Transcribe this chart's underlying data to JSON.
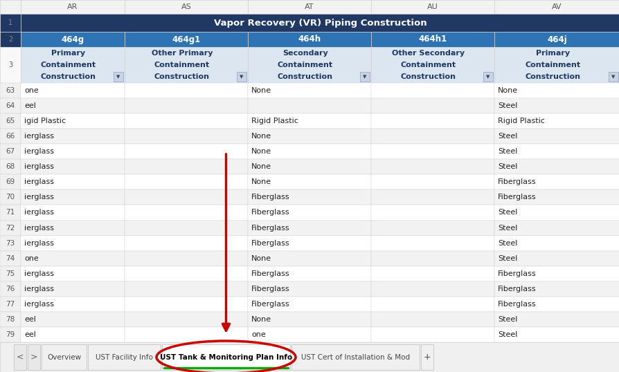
{
  "title": "Vapor Recovery (VR) Piping Construction",
  "col_headers_row1": [
    "AR",
    "AS",
    "AT",
    "AU",
    "AV"
  ],
  "col_headers_row2": [
    "464g",
    "464g1",
    "464h",
    "464h1",
    "464j"
  ],
  "col_headers_row3": [
    "Primary\nContainment\nConstruction",
    "Other Primary\nContainment\nConstruction",
    "Secondary\nContainment\nConstruction",
    "Other Secondary\nContainment\nConstruction",
    "Primary\nContainment\nConstruction"
  ],
  "rows": [
    [
      63,
      "one",
      "",
      "None",
      "",
      "None"
    ],
    [
      64,
      "eel",
      "",
      "",
      "",
      "Steel"
    ],
    [
      65,
      "igid Plastic",
      "",
      "Rigid Plastic",
      "",
      "Rigid Plastic"
    ],
    [
      66,
      "ierglass",
      "",
      "None",
      "",
      "Steel"
    ],
    [
      67,
      "ierglass",
      "",
      "None",
      "",
      "Steel"
    ],
    [
      68,
      "ierglass",
      "",
      "None",
      "",
      "Steel"
    ],
    [
      69,
      "ierglass",
      "",
      "None",
      "",
      "Fiberglass"
    ],
    [
      70,
      "ierglass",
      "",
      "Fiberglass",
      "",
      "Fiberglass"
    ],
    [
      71,
      "ierglass",
      "",
      "Fiberglass",
      "",
      "Steel"
    ],
    [
      72,
      "ierglass",
      "",
      "Fiberglass",
      "",
      "Steel"
    ],
    [
      73,
      "ierglass",
      "",
      "Fiberglass",
      "",
      "Steel"
    ],
    [
      74,
      "one",
      "",
      "None",
      "",
      "Steel"
    ],
    [
      75,
      "ierglass",
      "",
      "Fiberglass",
      "",
      "Fiberglass"
    ],
    [
      76,
      "ierglass",
      "",
      "Fiberglass",
      "",
      "Fiberglass"
    ],
    [
      77,
      "ierglass",
      "",
      "Fiberglass",
      "",
      "Fiberglass"
    ],
    [
      78,
      "eel",
      "",
      "None",
      "",
      "Steel"
    ],
    [
      79,
      "eel",
      "",
      "one",
      "",
      "Steel"
    ]
  ],
  "tabs": [
    "<",
    ">",
    "Overview",
    "UST Facility Info",
    "UST Tank & Monitoring Plan Info",
    "UST Cert of Installation & Mod",
    "+"
  ],
  "active_tab": "UST Tank & Monitoring Plan Info",
  "header_bg1": "#1f3864",
  "header_bg2": "#2e74b5",
  "header_bg3": "#dce6f1",
  "header_text1": "#ffffff",
  "header_text2": "#ffffff",
  "header_text3": "#1f3864",
  "row_bg_even": "#ffffff",
  "row_bg_odd": "#f2f2f2",
  "grid_color": "#d0d0d0",
  "arrow_color": "#cc0000",
  "circle_color": "#cc0000",
  "col_label_bg": "#f2f2f2",
  "col_label_border": "#d0d0d0",
  "row_num_bg": "#f2f2f2",
  "tab_bar_bg": "#f0f0f0",
  "tab_bar_border": "#e0e0e0",
  "active_tab_bg": "#ffffff",
  "inactive_tab_bg": "#f0f0f0",
  "active_tab_underline": "#00aa00"
}
